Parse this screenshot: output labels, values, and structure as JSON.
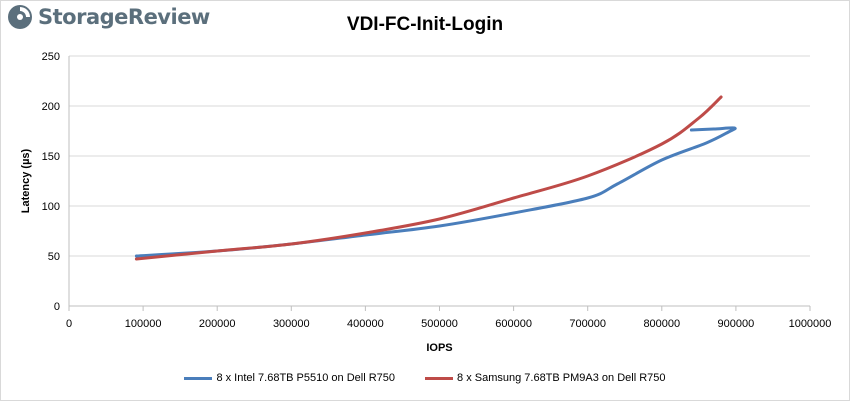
{
  "brand": {
    "name": "StorageReview"
  },
  "chart_data": {
    "type": "line",
    "title": "VDI-FC-Init-Login",
    "xlabel": "IOPS",
    "ylabel": "Latency (µs)",
    "xlim": [
      0,
      1000000
    ],
    "ylim": [
      0,
      250
    ],
    "x_ticks": [
      "0",
      "100000",
      "200000",
      "300000",
      "400000",
      "500000",
      "600000",
      "700000",
      "800000",
      "900000",
      "1000000"
    ],
    "y_ticks": [
      "0",
      "50",
      "100",
      "150",
      "200",
      "250"
    ],
    "grid": "horizontal",
    "legend_position": "bottom",
    "series": [
      {
        "name": "8 x Intel 7.68TB P5510 on Dell R750",
        "color": "#4a7ebb",
        "points": [
          [
            91000,
            50
          ],
          [
            200000,
            55
          ],
          [
            300000,
            62
          ],
          [
            400000,
            71
          ],
          [
            500000,
            80
          ],
          [
            600000,
            93
          ],
          [
            700000,
            108
          ],
          [
            740000,
            122
          ],
          [
            800000,
            146
          ],
          [
            860000,
            163
          ],
          [
            890000,
            174
          ],
          [
            898000,
            178
          ],
          [
            870000,
            177
          ],
          [
            840000,
            176
          ]
        ]
      },
      {
        "name": "8 x Samsung 7.68TB PM9A3 on Dell R750",
        "color": "#be4b48",
        "points": [
          [
            91000,
            47
          ],
          [
            200000,
            55
          ],
          [
            300000,
            62
          ],
          [
            400000,
            73
          ],
          [
            500000,
            87
          ],
          [
            600000,
            108
          ],
          [
            700000,
            130
          ],
          [
            800000,
            162
          ],
          [
            850000,
            188
          ],
          [
            880000,
            209
          ]
        ]
      }
    ]
  }
}
